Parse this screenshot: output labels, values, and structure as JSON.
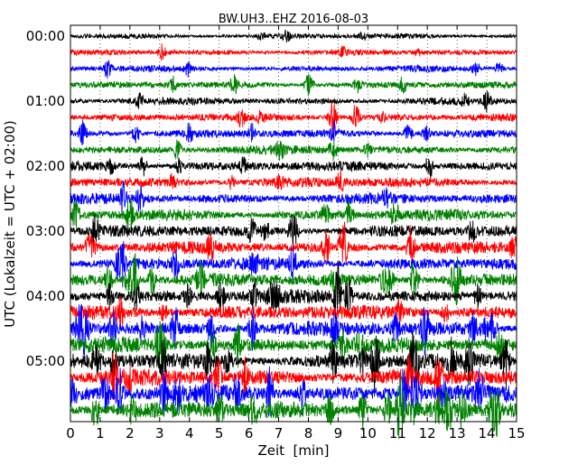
{
  "chart_data": {
    "type": "line",
    "title": "BW.UH3..EHZ 2016-08-03",
    "xlabel": "Zeit  [min]",
    "ylabel": "UTC (Lokalzeit = UTC + 02:00)",
    "xlim": [
      0,
      15
    ],
    "x_ticks": [
      "0",
      "1",
      "2",
      "3",
      "4",
      "5",
      "6",
      "7",
      "8",
      "9",
      "10",
      "11",
      "12",
      "13",
      "14",
      "15"
    ],
    "y_ticks": [
      "00:00",
      "01:00",
      "02:00",
      "03:00",
      "04:00",
      "05:00"
    ],
    "grid": {
      "x": "dotted vertical at each minute",
      "y": "none"
    },
    "color_cycle": [
      "#000000",
      "#ff0000",
      "#0000ff",
      "#008000"
    ],
    "series": [
      {
        "time": "00:00",
        "color": "#000000"
      },
      {
        "time": "00:15",
        "color": "#ff0000"
      },
      {
        "time": "00:30",
        "color": "#0000ff"
      },
      {
        "time": "00:45",
        "color": "#008000"
      },
      {
        "time": "01:00",
        "color": "#000000"
      },
      {
        "time": "01:15",
        "color": "#ff0000"
      },
      {
        "time": "01:30",
        "color": "#0000ff"
      },
      {
        "time": "01:45",
        "color": "#008000"
      },
      {
        "time": "02:00",
        "color": "#000000"
      },
      {
        "time": "02:15",
        "color": "#ff0000"
      },
      {
        "time": "02:30",
        "color": "#0000ff"
      },
      {
        "time": "02:45",
        "color": "#008000"
      },
      {
        "time": "03:00",
        "color": "#000000"
      },
      {
        "time": "03:15",
        "color": "#ff0000"
      },
      {
        "time": "03:30",
        "color": "#0000ff"
      },
      {
        "time": "03:45",
        "color": "#008000"
      },
      {
        "time": "04:00",
        "color": "#000000"
      },
      {
        "time": "04:15",
        "color": "#ff0000"
      },
      {
        "time": "04:30",
        "color": "#0000ff"
      },
      {
        "time": "04:45",
        "color": "#008000"
      },
      {
        "time": "05:00",
        "color": "#000000"
      },
      {
        "time": "05:15",
        "color": "#ff0000"
      },
      {
        "time": "05:30",
        "color": "#0000ff"
      },
      {
        "time": "05:45",
        "color": "#008000"
      }
    ]
  }
}
